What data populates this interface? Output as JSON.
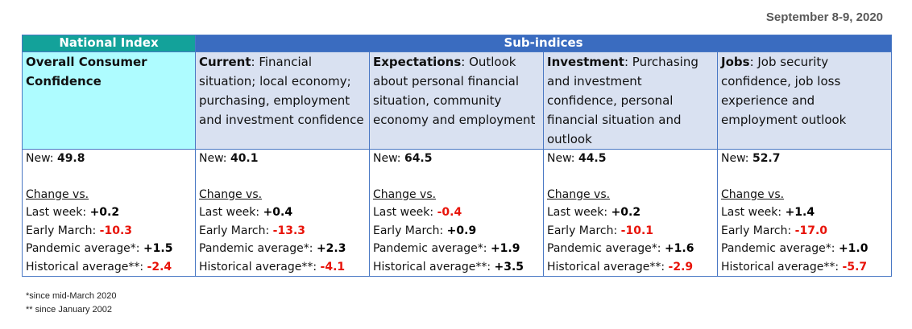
{
  "date": "September 8-9, 2020",
  "headers": {
    "national": "National Index",
    "sub": "Sub-indices"
  },
  "columns": [
    {
      "title": "Overall Consumer Confidence",
      "desc": "",
      "new_label": "New:",
      "new": "49.8",
      "change_title": "Change vs.",
      "rows": [
        {
          "label": "Last week:",
          "value": "+0.2",
          "neg": false
        },
        {
          "label": "Early March:",
          "value": "-10.3",
          "neg": true
        },
        {
          "label": "Pandemic average*:",
          "value": "+1.5",
          "neg": false
        },
        {
          "label": "Historical average**:",
          "value": "-2.4",
          "neg": true
        }
      ]
    },
    {
      "title": "Current",
      "desc": ": Financial situation; local economy; purchasing, employment and investment confidence",
      "new_label": "New:",
      "new": "40.1",
      "change_title": "Change vs.",
      "rows": [
        {
          "label": "Last week:",
          "value": "+0.4",
          "neg": false
        },
        {
          "label": "Early March:",
          "value": "-13.3",
          "neg": true
        },
        {
          "label": "Pandemic average*:",
          "value": " +2.3",
          "neg": false
        },
        {
          "label": "Historical average**:",
          "value": "-4.1",
          "neg": true
        }
      ]
    },
    {
      "title": "Expectations",
      "desc": ": Outlook about personal financial situation, community economy and employment",
      "new_label": "New:",
      "new": "64.5",
      "change_title": "Change vs.",
      "rows": [
        {
          "label": "Last week:",
          "value": "-0.4",
          "neg": true
        },
        {
          "label": "Early March:",
          "value": "+0.9",
          "neg": false
        },
        {
          "label": "Pandemic average*:",
          "value": "+1.9",
          "neg": false
        },
        {
          "label": "Historical average**:",
          "value": "+3.5",
          "neg": false
        }
      ]
    },
    {
      "title": "Investment",
      "desc": ": Purchasing and investment confidence, personal financial situation and outlook",
      "new_label": "New:",
      "new": "44.5",
      "change_title": "Change vs.",
      "rows": [
        {
          "label": "Last week:",
          "value": "+0.2",
          "neg": false
        },
        {
          "label": "Early March:",
          "value": "-10.1",
          "neg": true
        },
        {
          "label": "Pandemic average*:",
          "value": "+1.6",
          "neg": false
        },
        {
          "label": "Historical average**:",
          "value": "-2.9",
          "neg": true
        }
      ]
    },
    {
      "title": "Jobs",
      "desc": ": Job security confidence, job loss experience and employment outlook",
      "new_label": "New:",
      "new": "52.7",
      "change_title": "Change vs.",
      "rows": [
        {
          "label": "Last week:",
          "value": "+1.4",
          "neg": false
        },
        {
          "label": "Early March:",
          "value": "-17.0",
          "neg": true
        },
        {
          "label": "Pandemic average*:",
          "value": "+1.0",
          "neg": false
        },
        {
          "label": "Historical average**:",
          "value": "-5.7",
          "neg": true
        }
      ]
    }
  ],
  "footnotes": [
    "*since mid-March 2020",
    "** since January 2002"
  ]
}
